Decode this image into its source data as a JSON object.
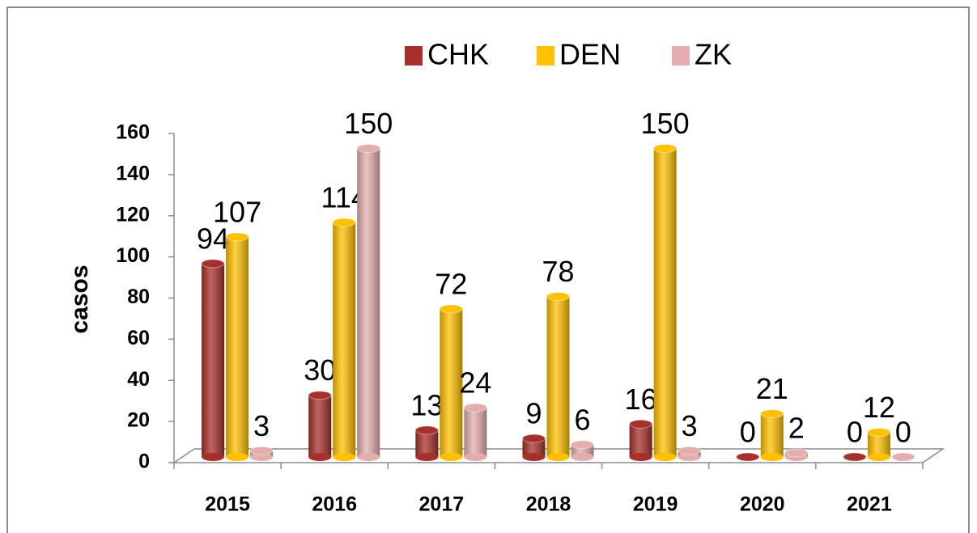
{
  "chart_data": {
    "type": "bar",
    "y_label": "casos",
    "categories": [
      "2015",
      "2016",
      "2017",
      "2018",
      "2019",
      "2020",
      "2021"
    ],
    "series": [
      {
        "name": "CHK",
        "color": "#a8302c",
        "values": [
          94,
          30,
          13,
          9,
          16,
          0,
          0
        ]
      },
      {
        "name": "DEN",
        "color": "#ffc000",
        "values": [
          107,
          114,
          72,
          78,
          150,
          21,
          12
        ]
      },
      {
        "name": "ZK",
        "color": "#e5aeae",
        "values": [
          3,
          150,
          24,
          6,
          3,
          2,
          0
        ]
      }
    ],
    "ylim": [
      0,
      160
    ],
    "yticks": [
      0,
      20,
      40,
      60,
      80,
      100,
      120,
      140,
      160
    ],
    "legend": "top",
    "grid": false
  }
}
